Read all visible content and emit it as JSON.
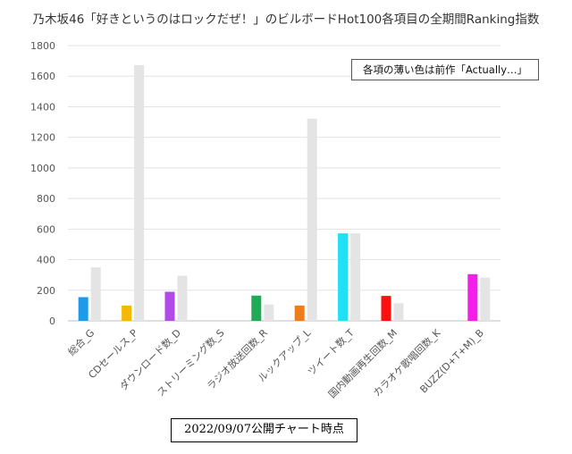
{
  "chart_data": {
    "type": "bar",
    "title": "乃木坂46「好きというのはロックだぜ！」のビルボードHot100各項目の全期間Ranking指数",
    "categories": [
      "総合_G",
      "CDセールス_P",
      "ダウンロード数_D",
      "ストリーミング数_S",
      "ラジオ放送回数_R",
      "ルックアップ_L",
      "ツイート数_T",
      "国内動画再生回数_M",
      "カラオケ歌唱回数_K",
      "BUZZ(D+T+M)_B"
    ],
    "series": [
      {
        "values": [
          155,
          100,
          190,
          0,
          165,
          100,
          572,
          163,
          0,
          305
        ],
        "colors": [
          "#1e9be8",
          "#f5b800",
          "#b04ae8",
          "#cccccc",
          "#1faa55",
          "#f07d1a",
          "#1fe0f5",
          "#ff1010",
          "#cccccc",
          "#f51ee8"
        ]
      },
      {
        "values": [
          350,
          1672,
          295,
          0,
          107,
          1322,
          572,
          115,
          0,
          283
        ],
        "color": "#e4e4e4"
      }
    ],
    "ylim": [
      0,
      1800
    ],
    "yticks": [
      0,
      200,
      400,
      600,
      800,
      1000,
      1200,
      1400,
      1600,
      1800
    ],
    "grid": true,
    "xlabel": "",
    "ylabel": ""
  },
  "annotation": "各項の薄い色は前作「Actually…」",
  "footer": "2022/09/07公開チャート時点"
}
